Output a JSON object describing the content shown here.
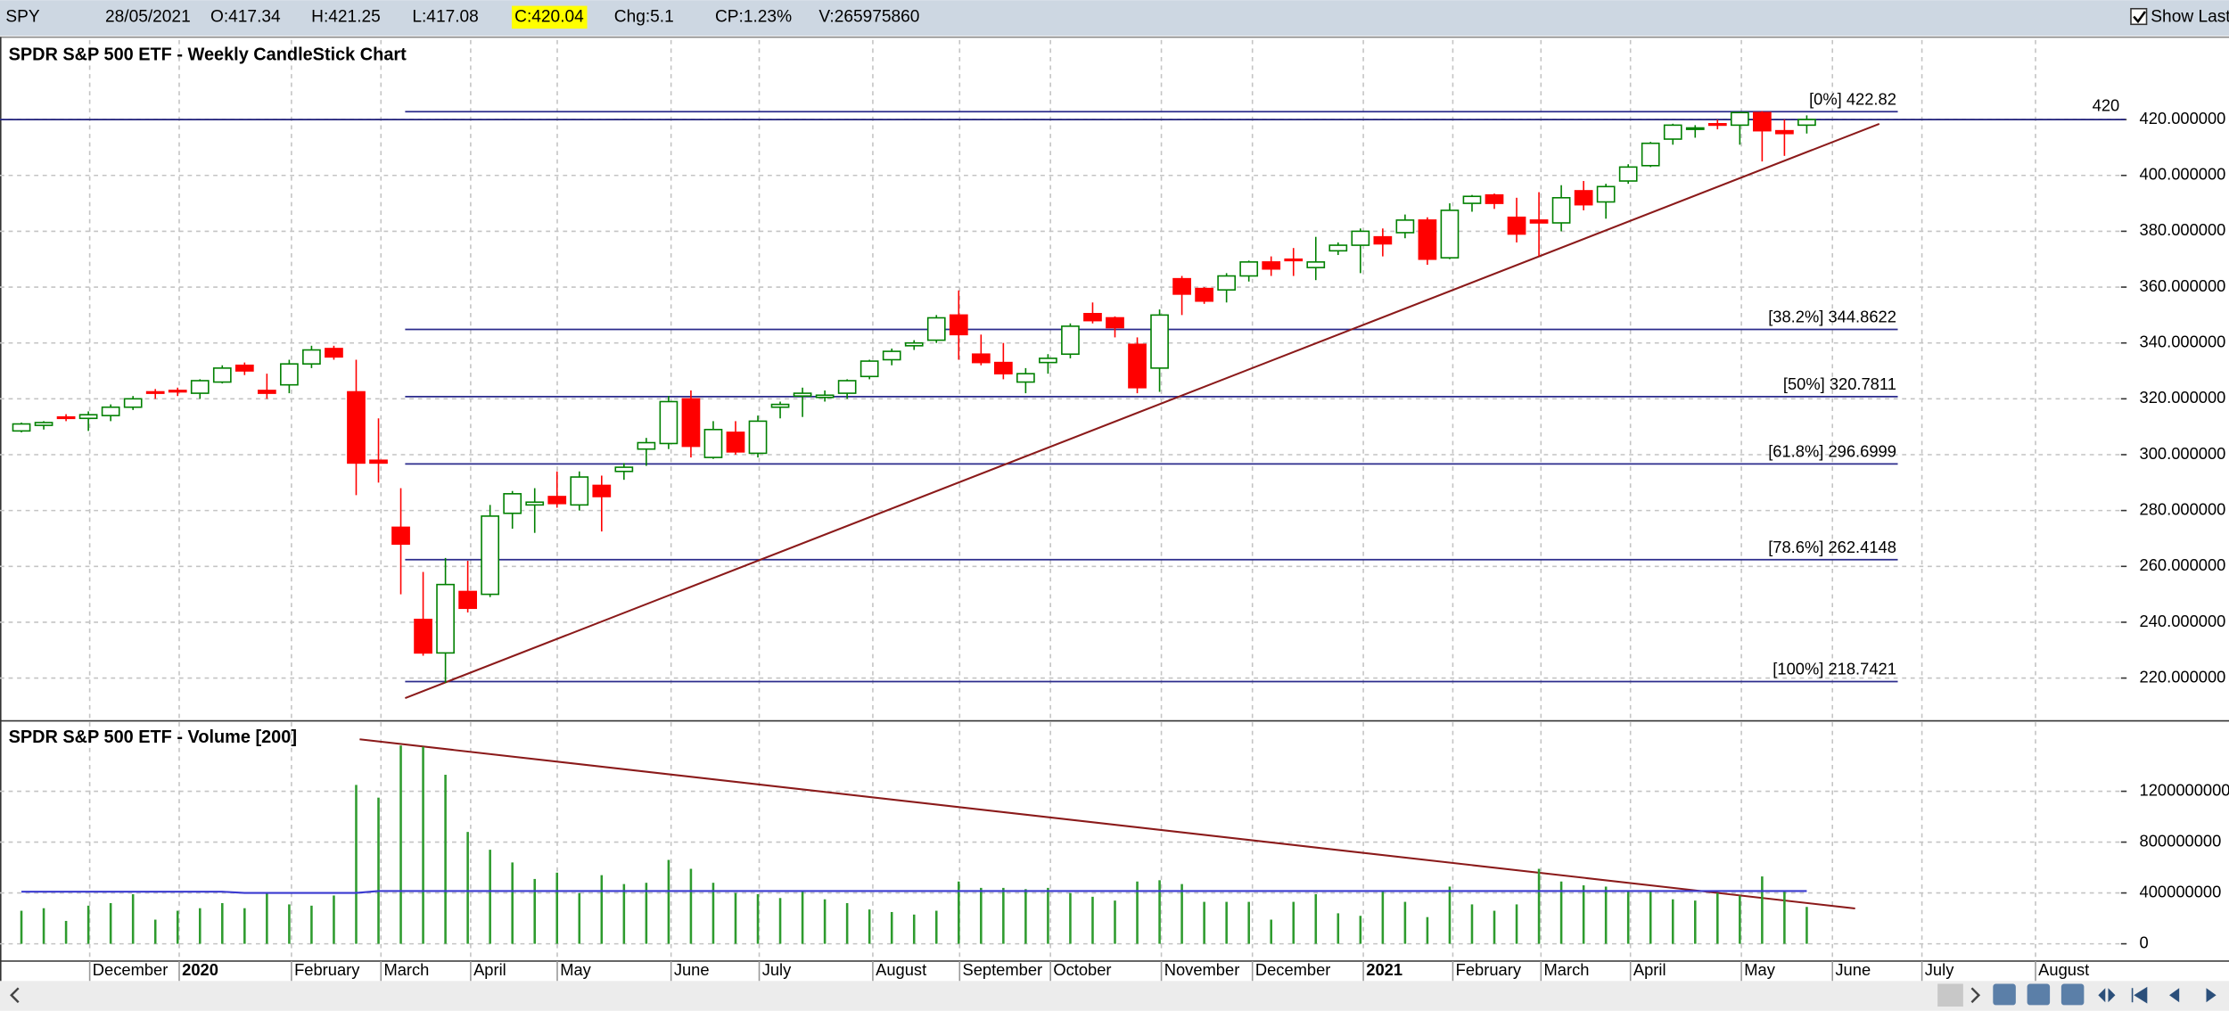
{
  "header": {
    "symbol": "SPY",
    "date": "28/05/2021",
    "open": "O:417.34",
    "high": "H:421.25",
    "low": "L:417.08",
    "close": "C:420.04",
    "change": "Chg:5.1",
    "change_pct": "CP:1.23%",
    "volume": "V:265975860",
    "show_last": "Show Last"
  },
  "chart_data": [
    {
      "type": "candlestick",
      "title": "SPDR S&P 500 ETF - Weekly CandleStick Chart",
      "title_color": "#000000",
      "open": [
        308.5,
        310.5,
        313.5,
        313,
        314,
        317,
        322.5,
        323,
        322,
        326,
        332,
        323,
        325,
        332.5,
        338,
        322.5,
        298,
        274,
        241,
        229,
        251,
        250,
        279,
        282,
        285,
        282,
        289,
        294,
        302,
        304,
        320,
        299,
        308,
        300.5,
        317,
        321,
        320.5,
        322,
        328,
        334,
        339,
        341,
        350,
        336,
        333,
        326,
        333,
        336,
        350.5,
        349,
        339.5,
        331,
        363,
        359.5,
        359,
        364,
        369,
        370,
        367,
        373,
        375,
        378,
        379.5,
        384,
        370.5,
        390,
        393,
        385,
        384,
        383,
        394.5,
        390.5,
        398,
        403.5,
        413,
        416.5,
        418.5,
        418,
        422.5,
        416,
        418
      ],
      "high": [
        311.5,
        312,
        314.5,
        315.5,
        318,
        321,
        323.5,
        324,
        327,
        332,
        333,
        329,
        334,
        339,
        339,
        334,
        313,
        288,
        258,
        263,
        262,
        282,
        287,
        288,
        294,
        294,
        292.5,
        297,
        306,
        321,
        323,
        312,
        312,
        314,
        319,
        324,
        323,
        327,
        334,
        338,
        341,
        350,
        358.8,
        343,
        340,
        331,
        336,
        347,
        354.5,
        349.5,
        342,
        352,
        364,
        360,
        365,
        369.5,
        371,
        374,
        378,
        376,
        381,
        381,
        386,
        385,
        390,
        393,
        393.5,
        392,
        394,
        396.5,
        398,
        397,
        404,
        412,
        418.5,
        418,
        420,
        422.8,
        423,
        420,
        421.5
      ],
      "low": [
        308,
        309,
        312,
        308.5,
        312,
        316,
        320,
        321,
        320,
        325.5,
        328.5,
        320,
        322,
        331,
        334,
        285.5,
        290,
        250,
        228,
        218.3,
        243.5,
        249,
        273.5,
        272,
        281,
        280,
        272.5,
        291,
        296,
        302,
        299,
        298.5,
        300,
        299,
        313,
        313.5,
        319,
        320,
        327,
        332,
        337.5,
        340,
        334,
        332,
        327,
        322,
        329,
        334.5,
        347,
        342,
        322,
        322.5,
        350,
        354,
        354.5,
        362,
        364,
        364,
        362.5,
        371.5,
        365,
        371,
        377.5,
        368,
        370,
        387,
        388,
        376,
        371,
        380,
        387.5,
        384.5,
        397,
        403,
        411,
        413.5,
        416.5,
        411,
        405,
        407,
        415
      ],
      "close": [
        311,
        311.5,
        313,
        314.3,
        317,
        320,
        322,
        322.5,
        326.5,
        331,
        330,
        322,
        332.5,
        337.5,
        335,
        297,
        297,
        268,
        229,
        253.5,
        245,
        278,
        286,
        283,
        282.5,
        292,
        285,
        295.5,
        304.3,
        319,
        303,
        309,
        301,
        312,
        318,
        322,
        321.3,
        326.5,
        333.5,
        337,
        340,
        349,
        343,
        333,
        329,
        329,
        334.5,
        346,
        348,
        345.5,
        324,
        350,
        357.5,
        355,
        364,
        369,
        366.5,
        369.5,
        369,
        375,
        380,
        375.5,
        384,
        370,
        387.5,
        392.5,
        390,
        379,
        383,
        392,
        389.5,
        396,
        403,
        411.5,
        418,
        417,
        418,
        422.5,
        416,
        415,
        420
      ],
      "up_color": "#008000",
      "down_color": "#ff0000",
      "xlim": [
        -0.96,
        94.27
      ],
      "ylim": [
        205.7,
        448.5
      ],
      "yticks": [
        {
          "value": 220,
          "label": "220.000000"
        },
        {
          "value": 240,
          "label": "240.000000"
        },
        {
          "value": 260,
          "label": "260.000000"
        },
        {
          "value": 280,
          "label": "280.000000"
        },
        {
          "value": 300,
          "label": "300.000000"
        },
        {
          "value": 320,
          "label": "320.000000"
        },
        {
          "value": 340,
          "label": "340.000000"
        },
        {
          "value": 360,
          "label": "360.000000"
        },
        {
          "value": 380,
          "label": "380.000000"
        },
        {
          "value": 400,
          "label": "400.000000"
        },
        {
          "value": 420,
          "label": "420.000000"
        }
      ],
      "grid": true,
      "levels": [
        {
          "value": 422.82,
          "label": "[0%] 422.82"
        },
        {
          "value": 344.8622,
          "label": "[38.2%] 344.8622"
        },
        {
          "value": 320.7811,
          "label": "[50%] 320.7811"
        },
        {
          "value": 296.6999,
          "label": "[61.8%] 296.6999"
        },
        {
          "value": 262.4148,
          "label": "[78.6%] 262.4148"
        },
        {
          "value": 218.7421,
          "label": "[100%] 218.7421"
        }
      ],
      "level_color": "#2b2b8c",
      "last_price": 420,
      "last_price_color": "#1f1f7a"
    },
    {
      "type": "bar",
      "title": "SPDR S&P 500 ETF - Volume [200]",
      "title_color": "#e00000",
      "values": [
        260000000,
        280000000,
        180000000,
        300000000,
        320000000,
        390000000,
        190000000,
        260000000,
        280000000,
        320000000,
        280000000,
        400000000,
        310000000,
        300000000,
        380000000,
        1250000000,
        1150000000,
        1560000000,
        1550000000,
        1330000000,
        880000000,
        740000000,
        640000000,
        510000000,
        560000000,
        400000000,
        540000000,
        470000000,
        480000000,
        660000000,
        590000000,
        480000000,
        400000000,
        390000000,
        360000000,
        410000000,
        350000000,
        320000000,
        270000000,
        250000000,
        230000000,
        260000000,
        490000000,
        440000000,
        440000000,
        430000000,
        440000000,
        400000000,
        370000000,
        340000000,
        490000000,
        500000000,
        470000000,
        330000000,
        330000000,
        330000000,
        190000000,
        330000000,
        390000000,
        240000000,
        220000000,
        420000000,
        330000000,
        210000000,
        450000000,
        310000000,
        260000000,
        310000000,
        590000000,
        490000000,
        460000000,
        450000000,
        410000000,
        420000000,
        350000000,
        340000000,
        400000000,
        380000000,
        530000000,
        410000000,
        290000000
      ],
      "color": "#2e9b2e",
      "line_values": [
        410000000,
        410000000,
        410000000,
        410000000,
        410000000,
        410000000,
        410000000,
        410000000,
        410000000,
        410000000,
        400000000,
        400000000,
        400000000,
        400000000,
        400000000,
        400000000,
        415000000,
        415000000,
        415000000,
        415000000,
        415000000,
        415000000,
        415000000,
        415000000,
        415000000,
        415000000,
        415000000,
        415000000,
        415000000,
        415000000,
        415000000,
        415000000,
        415000000,
        415000000,
        415000000,
        415000000,
        415000000,
        415000000,
        415000000,
        415000000,
        415000000,
        415000000,
        415000000,
        415000000,
        415000000,
        415000000,
        415000000,
        415000000,
        415000000,
        415000000,
        415000000,
        415000000,
        415000000,
        415000000,
        415000000,
        415000000,
        415000000,
        415000000,
        415000000,
        415000000,
        415000000,
        415000000,
        415000000,
        415000000,
        415000000,
        415000000,
        415000000,
        415000000,
        415000000,
        415000000,
        415000000,
        415000000,
        415000000,
        415000000,
        415000000,
        415000000,
        415000000,
        415000000,
        415000000,
        415000000,
        415000000
      ],
      "line_color": "#3a3ad0",
      "xlim": [
        -0.96,
        94.27
      ],
      "xticks": [
        {
          "value": 3.06,
          "label": "December"
        },
        {
          "value": 7.07,
          "label": "2020"
        },
        {
          "value": 12.1,
          "label": "February"
        },
        {
          "value": 16.11,
          "label": "March"
        },
        {
          "value": 20.13,
          "label": "April"
        },
        {
          "value": 24.01,
          "label": "May"
        },
        {
          "value": 29.11,
          "label": "June"
        },
        {
          "value": 33.06,
          "label": "July"
        },
        {
          "value": 38.15,
          "label": "August"
        },
        {
          "value": 42.04,
          "label": "September"
        },
        {
          "value": 46.11,
          "label": "October"
        },
        {
          "value": 51.08,
          "label": "November"
        },
        {
          "value": 55.16,
          "label": "December"
        },
        {
          "value": 60.13,
          "label": "2021"
        },
        {
          "value": 64.14,
          "label": "February"
        },
        {
          "value": 68.09,
          "label": "March"
        },
        {
          "value": 72.1,
          "label": "April"
        },
        {
          "value": 77.07,
          "label": "May"
        },
        {
          "value": 81.15,
          "label": "June"
        },
        {
          "value": 85.16,
          "label": "July"
        },
        {
          "value": 90.25,
          "label": "August"
        }
      ],
      "ylim": [
        -136000000,
        1743000000
      ],
      "yticks": [
        0,
        400000000,
        800000000,
        1200000000
      ],
      "grid": true
    }
  ]
}
